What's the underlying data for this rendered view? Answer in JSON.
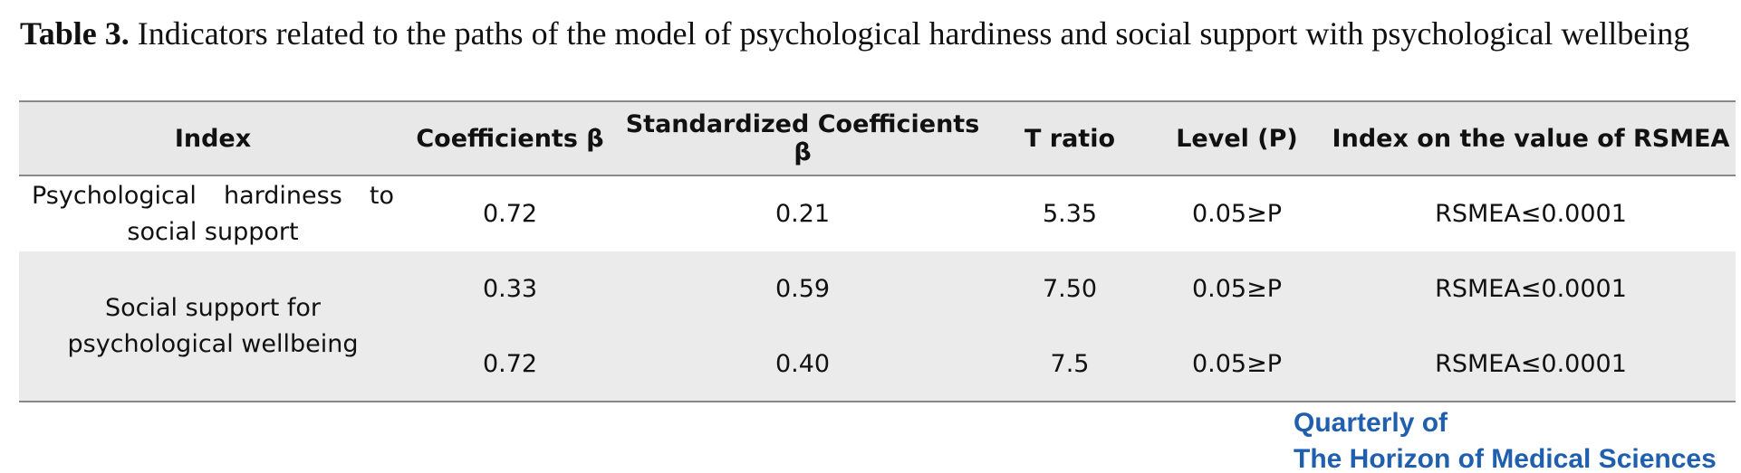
{
  "caption": {
    "label": "Table 3.",
    "text": "Indicators related to the paths of the model of psychological hardiness and social support with psychological wellbeing"
  },
  "table": {
    "header": [
      "Index",
      "Coefficients β",
      "Standardized Coefficients β",
      "T ratio",
      "Level (P)",
      "Index on the value of RSMEA"
    ],
    "rows": [
      {
        "label": "Psychological hardiness to social support",
        "values": [
          [
            "0.72",
            "0.21",
            "5.35",
            "0.05≥P",
            "RSMEA≤0.0001"
          ]
        ]
      },
      {
        "label": "Social support for psychological wellbeing",
        "values": [
          [
            "0.33",
            "0.59",
            "7.50",
            "0.05≥P",
            "RSMEA≤0.0001"
          ],
          [
            "0.72",
            "0.40",
            "7.5",
            "0.05≥P",
            "RSMEA≤0.0001"
          ]
        ]
      }
    ]
  },
  "logo": {
    "line1": "Quarterly of",
    "line2": "The Horizon of Medical Sciences"
  }
}
